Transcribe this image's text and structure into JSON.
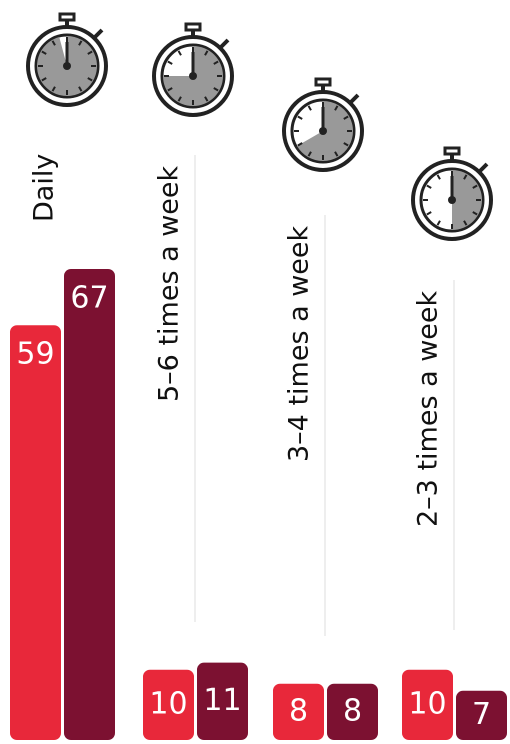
{
  "chart_data": {
    "type": "bar",
    "categories": [
      "Daily",
      "5–6 times a week",
      "3–4 times a week",
      "2–3 times a week"
    ],
    "series": [
      {
        "color": "#e8283a",
        "values": [
          59,
          10,
          8,
          10
        ]
      },
      {
        "color": "#7c1131",
        "values": [
          67,
          11,
          8,
          7
        ]
      }
    ]
  }
}
